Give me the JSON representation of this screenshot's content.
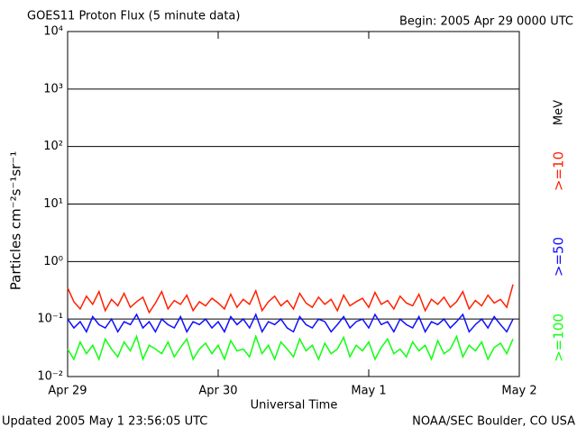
{
  "chart_data": {
    "type": "line",
    "title": "GOES11 Proton Flux (5 minute data)",
    "subtitle": "Begin: 2005 Apr 29 0000 UTC",
    "x_label": "Universal Time",
    "y_label": "Particles cm⁻²s⁻¹sr⁻¹",
    "unit_label": "MeV",
    "footer_left": "Updated 2005 May  1 23:56:05 UTC",
    "footer_right": "NOAA/SEC Boulder, CO USA",
    "log_y": true,
    "grid": true,
    "xlim": [
      0,
      72
    ],
    "xticks": [
      {
        "value": 0,
        "label": "Apr 29"
      },
      {
        "value": 24,
        "label": "Apr 30"
      },
      {
        "value": 48,
        "label": "May 1"
      },
      {
        "value": 72,
        "label": "May 2"
      }
    ],
    "ylim": [
      0.01,
      10000
    ],
    "yticks": [
      {
        "value": 0.01,
        "label": "10⁻²"
      },
      {
        "value": 0.1,
        "label": "10⁻¹"
      },
      {
        "value": 1,
        "label": "10⁰"
      },
      {
        "value": 10,
        "label": "10¹"
      },
      {
        "value": 100,
        "label": "10²"
      },
      {
        "value": 1000,
        "label": "10³"
      },
      {
        "value": 10000,
        "label": "10⁴"
      }
    ],
    "x": [
      0,
      1,
      2,
      3,
      4,
      5,
      6,
      7,
      8,
      9,
      10,
      11,
      12,
      13,
      14,
      15,
      16,
      17,
      18,
      19,
      20,
      21,
      22,
      23,
      24,
      25,
      26,
      27,
      28,
      29,
      30,
      31,
      32,
      33,
      34,
      35,
      36,
      37,
      38,
      39,
      40,
      41,
      42,
      43,
      44,
      45,
      46,
      47,
      48,
      49,
      50,
      51,
      52,
      53,
      54,
      55,
      56,
      57,
      58,
      59,
      60,
      61,
      62,
      63,
      64,
      65,
      66,
      67,
      68,
      69,
      70,
      71
    ],
    "series": [
      {
        "name": ">=10",
        "color": "#ff2000",
        "values": [
          0.35,
          0.2,
          0.15,
          0.25,
          0.18,
          0.3,
          0.14,
          0.22,
          0.17,
          0.28,
          0.16,
          0.2,
          0.24,
          0.13,
          0.19,
          0.3,
          0.15,
          0.21,
          0.18,
          0.26,
          0.14,
          0.2,
          0.17,
          0.23,
          0.19,
          0.15,
          0.27,
          0.16,
          0.22,
          0.18,
          0.31,
          0.14,
          0.2,
          0.25,
          0.17,
          0.21,
          0.15,
          0.28,
          0.19,
          0.16,
          0.24,
          0.18,
          0.22,
          0.14,
          0.26,
          0.17,
          0.2,
          0.23,
          0.16,
          0.29,
          0.18,
          0.21,
          0.15,
          0.25,
          0.19,
          0.17,
          0.27,
          0.14,
          0.22,
          0.18,
          0.24,
          0.16,
          0.2,
          0.3,
          0.15,
          0.21,
          0.17,
          0.26,
          0.19,
          0.22,
          0.16,
          0.4
        ]
      },
      {
        "name": ">=50",
        "color": "#1010ff",
        "values": [
          0.1,
          0.07,
          0.09,
          0.06,
          0.11,
          0.08,
          0.07,
          0.1,
          0.06,
          0.09,
          0.08,
          0.12,
          0.07,
          0.09,
          0.06,
          0.1,
          0.08,
          0.07,
          0.11,
          0.06,
          0.09,
          0.08,
          0.1,
          0.07,
          0.09,
          0.06,
          0.11,
          0.08,
          0.1,
          0.07,
          0.12,
          0.06,
          0.09,
          0.08,
          0.1,
          0.07,
          0.06,
          0.11,
          0.08,
          0.07,
          0.1,
          0.09,
          0.06,
          0.08,
          0.11,
          0.07,
          0.09,
          0.1,
          0.07,
          0.12,
          0.08,
          0.09,
          0.06,
          0.1,
          0.08,
          0.07,
          0.11,
          0.06,
          0.09,
          0.08,
          0.1,
          0.07,
          0.09,
          0.12,
          0.06,
          0.08,
          0.1,
          0.07,
          0.11,
          0.08,
          0.06,
          0.1
        ]
      },
      {
        "name": ">=100",
        "color": "#10ff10",
        "values": [
          0.03,
          0.02,
          0.04,
          0.025,
          0.035,
          0.02,
          0.045,
          0.03,
          0.022,
          0.04,
          0.028,
          0.05,
          0.02,
          0.035,
          0.03,
          0.025,
          0.04,
          0.022,
          0.032,
          0.045,
          0.02,
          0.03,
          0.038,
          0.025,
          0.035,
          0.02,
          0.042,
          0.028,
          0.03,
          0.022,
          0.05,
          0.025,
          0.035,
          0.02,
          0.04,
          0.03,
          0.022,
          0.045,
          0.028,
          0.035,
          0.02,
          0.038,
          0.025,
          0.03,
          0.048,
          0.022,
          0.035,
          0.028,
          0.04,
          0.02,
          0.032,
          0.045,
          0.025,
          0.03,
          0.022,
          0.04,
          0.028,
          0.035,
          0.02,
          0.042,
          0.025,
          0.03,
          0.05,
          0.022,
          0.035,
          0.028,
          0.04,
          0.02,
          0.032,
          0.038,
          0.025,
          0.045
        ]
      }
    ]
  }
}
